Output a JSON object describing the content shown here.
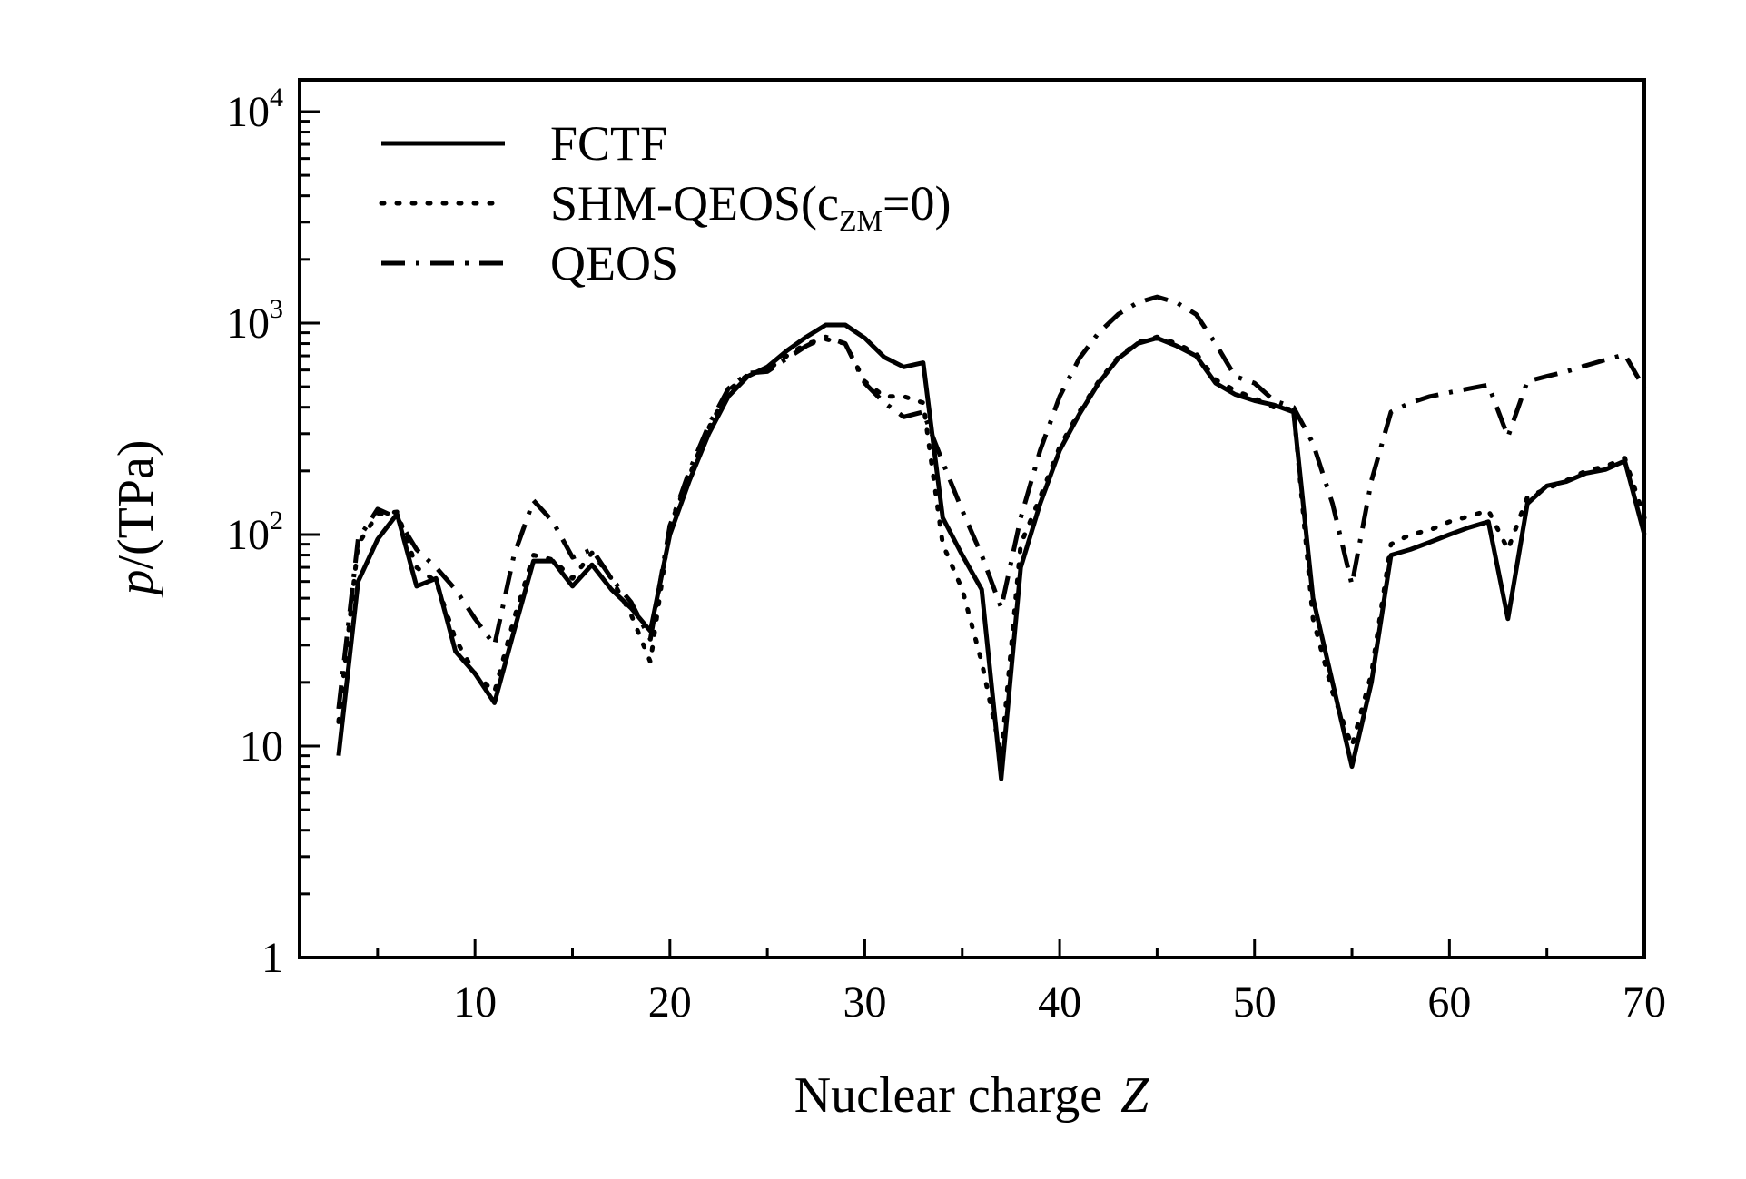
{
  "chart_data": {
    "type": "line",
    "title": "",
    "xlabel": "Nuclear charge",
    "xlabel_var": "Z",
    "ylabel": "/(TPa)",
    "ylabel_var": "p",
    "xlim": [
      1,
      70
    ],
    "ylim": [
      1,
      14125
    ],
    "yscale": "log",
    "x_ticks": [
      10,
      20,
      30,
      40,
      50,
      60,
      70
    ],
    "x_tick_labels": [
      "10",
      "20",
      "30",
      "40",
      "50",
      "60",
      "70"
    ],
    "y_ticks": [
      {
        "value": 1,
        "base": "1",
        "exp": ""
      },
      {
        "value": 10,
        "base": "10",
        "exp": ""
      },
      {
        "value": 100,
        "base": "10",
        "exp": "2"
      },
      {
        "value": 1000,
        "base": "10",
        "exp": "3"
      },
      {
        "value": 10000,
        "base": "10",
        "exp": "4"
      }
    ],
    "legend_position": "top-left",
    "series": [
      {
        "name": "FCTF",
        "name_sub": "",
        "name_suffix": "",
        "style": "solid",
        "points": [
          [
            3,
            9
          ],
          [
            4,
            60
          ],
          [
            5,
            95
          ],
          [
            6,
            125
          ],
          [
            7,
            57
          ],
          [
            8,
            62
          ],
          [
            9,
            28
          ],
          [
            10,
            22
          ],
          [
            11,
            16
          ],
          [
            12,
            35
          ],
          [
            13,
            75
          ],
          [
            14,
            75
          ],
          [
            15,
            57
          ],
          [
            16,
            72
          ],
          [
            17,
            55
          ],
          [
            18,
            45
          ],
          [
            19,
            35
          ],
          [
            20,
            100
          ],
          [
            21,
            180
          ],
          [
            22,
            300
          ],
          [
            23,
            450
          ],
          [
            24,
            560
          ],
          [
            25,
            620
          ],
          [
            26,
            740
          ],
          [
            27,
            860
          ],
          [
            28,
            980
          ],
          [
            29,
            980
          ],
          [
            30,
            850
          ],
          [
            31,
            690
          ],
          [
            32,
            620
          ],
          [
            33,
            650
          ],
          [
            34,
            120
          ],
          [
            35,
            80
          ],
          [
            36,
            55
          ],
          [
            37,
            7
          ],
          [
            38,
            70
          ],
          [
            39,
            140
          ],
          [
            40,
            250
          ],
          [
            41,
            370
          ],
          [
            42,
            520
          ],
          [
            43,
            680
          ],
          [
            44,
            800
          ],
          [
            45,
            850
          ],
          [
            46,
            780
          ],
          [
            47,
            700
          ],
          [
            48,
            520
          ],
          [
            49,
            460
          ],
          [
            50,
            430
          ],
          [
            51,
            410
          ],
          [
            52,
            380
          ],
          [
            53,
            50
          ],
          [
            54,
            20
          ],
          [
            55,
            8
          ],
          [
            56,
            20
          ],
          [
            57,
            80
          ],
          [
            58,
            85
          ],
          [
            59,
            92
          ],
          [
            60,
            100
          ],
          [
            61,
            108
          ],
          [
            62,
            115
          ],
          [
            63,
            40
          ],
          [
            64,
            140
          ],
          [
            65,
            170
          ],
          [
            66,
            178
          ],
          [
            67,
            195
          ],
          [
            68,
            203
          ],
          [
            69,
            223
          ],
          [
            70,
            100
          ]
        ]
      },
      {
        "name": "SHM-QEOS(c",
        "name_sub": "ZM",
        "name_suffix": "=0)",
        "style": "dotted",
        "points": [
          [
            3,
            13
          ],
          [
            4,
            90
          ],
          [
            5,
            125
          ],
          [
            6,
            128
          ],
          [
            7,
            70
          ],
          [
            8,
            60
          ],
          [
            9,
            32
          ],
          [
            10,
            22
          ],
          [
            11,
            18
          ],
          [
            12,
            40
          ],
          [
            13,
            80
          ],
          [
            14,
            76
          ],
          [
            15,
            62
          ],
          [
            16,
            82
          ],
          [
            17,
            62
          ],
          [
            18,
            42
          ],
          [
            19,
            25
          ],
          [
            20,
            110
          ],
          [
            21,
            190
          ],
          [
            22,
            320
          ],
          [
            23,
            480
          ],
          [
            24,
            570
          ],
          [
            25,
            600
          ],
          [
            26,
            700
          ],
          [
            27,
            800
          ],
          [
            28,
            840
          ],
          [
            29,
            800
          ],
          [
            30,
            530
          ],
          [
            31,
            450
          ],
          [
            32,
            450
          ],
          [
            33,
            420
          ],
          [
            34,
            90
          ],
          [
            35,
            55
          ],
          [
            36,
            25
          ],
          [
            37,
            9
          ],
          [
            38,
            90
          ],
          [
            39,
            150
          ],
          [
            40,
            260
          ],
          [
            41,
            380
          ],
          [
            42,
            530
          ],
          [
            43,
            690
          ],
          [
            44,
            810
          ],
          [
            45,
            860
          ],
          [
            46,
            800
          ],
          [
            47,
            720
          ],
          [
            48,
            540
          ],
          [
            49,
            480
          ],
          [
            50,
            440
          ],
          [
            51,
            400
          ],
          [
            52,
            390
          ],
          [
            53,
            40
          ],
          [
            54,
            18
          ],
          [
            55,
            10
          ],
          [
            56,
            22
          ],
          [
            57,
            90
          ],
          [
            58,
            100
          ],
          [
            59,
            105
          ],
          [
            60,
            115
          ],
          [
            61,
            122
          ],
          [
            62,
            130
          ],
          [
            63,
            85
          ],
          [
            64,
            150
          ],
          [
            65,
            165
          ],
          [
            66,
            180
          ],
          [
            67,
            200
          ],
          [
            68,
            210
          ],
          [
            69,
            230
          ],
          [
            70,
            120
          ]
        ]
      },
      {
        "name": "QEOS",
        "name_sub": "",
        "name_suffix": "",
        "style": "dashdot",
        "points": [
          [
            3,
            15
          ],
          [
            4,
            95
          ],
          [
            5,
            132
          ],
          [
            6,
            120
          ],
          [
            7,
            85
          ],
          [
            8,
            70
          ],
          [
            9,
            55
          ],
          [
            10,
            40
          ],
          [
            11,
            30
          ],
          [
            12,
            80
          ],
          [
            13,
            145
          ],
          [
            14,
            115
          ],
          [
            15,
            78
          ],
          [
            16,
            85
          ],
          [
            17,
            62
          ],
          [
            18,
            48
          ],
          [
            19,
            32
          ],
          [
            20,
            110
          ],
          [
            21,
            200
          ],
          [
            22,
            330
          ],
          [
            23,
            490
          ],
          [
            24,
            580
          ],
          [
            25,
            590
          ],
          [
            26,
            680
          ],
          [
            27,
            780
          ],
          [
            28,
            860
          ],
          [
            29,
            800
          ],
          [
            30,
            520
          ],
          [
            31,
            420
          ],
          [
            32,
            360
          ],
          [
            33,
            380
          ],
          [
            34,
            220
          ],
          [
            35,
            130
          ],
          [
            36,
            80
          ],
          [
            37,
            45
          ],
          [
            38,
            120
          ],
          [
            39,
            250
          ],
          [
            40,
            450
          ],
          [
            41,
            680
          ],
          [
            42,
            900
          ],
          [
            43,
            1100
          ],
          [
            44,
            1250
          ],
          [
            45,
            1330
          ],
          [
            46,
            1250
          ],
          [
            47,
            1100
          ],
          [
            48,
            800
          ],
          [
            49,
            560
          ],
          [
            50,
            520
          ],
          [
            51,
            430
          ],
          [
            52,
            400
          ],
          [
            53,
            270
          ],
          [
            54,
            140
          ],
          [
            55,
            58
          ],
          [
            56,
            180
          ],
          [
            57,
            380
          ],
          [
            58,
            420
          ],
          [
            59,
            450
          ],
          [
            60,
            470
          ],
          [
            61,
            490
          ],
          [
            62,
            510
          ],
          [
            63,
            290
          ],
          [
            64,
            530
          ],
          [
            65,
            560
          ],
          [
            66,
            590
          ],
          [
            67,
            630
          ],
          [
            68,
            670
          ],
          [
            69,
            710
          ],
          [
            70,
            490
          ]
        ]
      }
    ]
  }
}
